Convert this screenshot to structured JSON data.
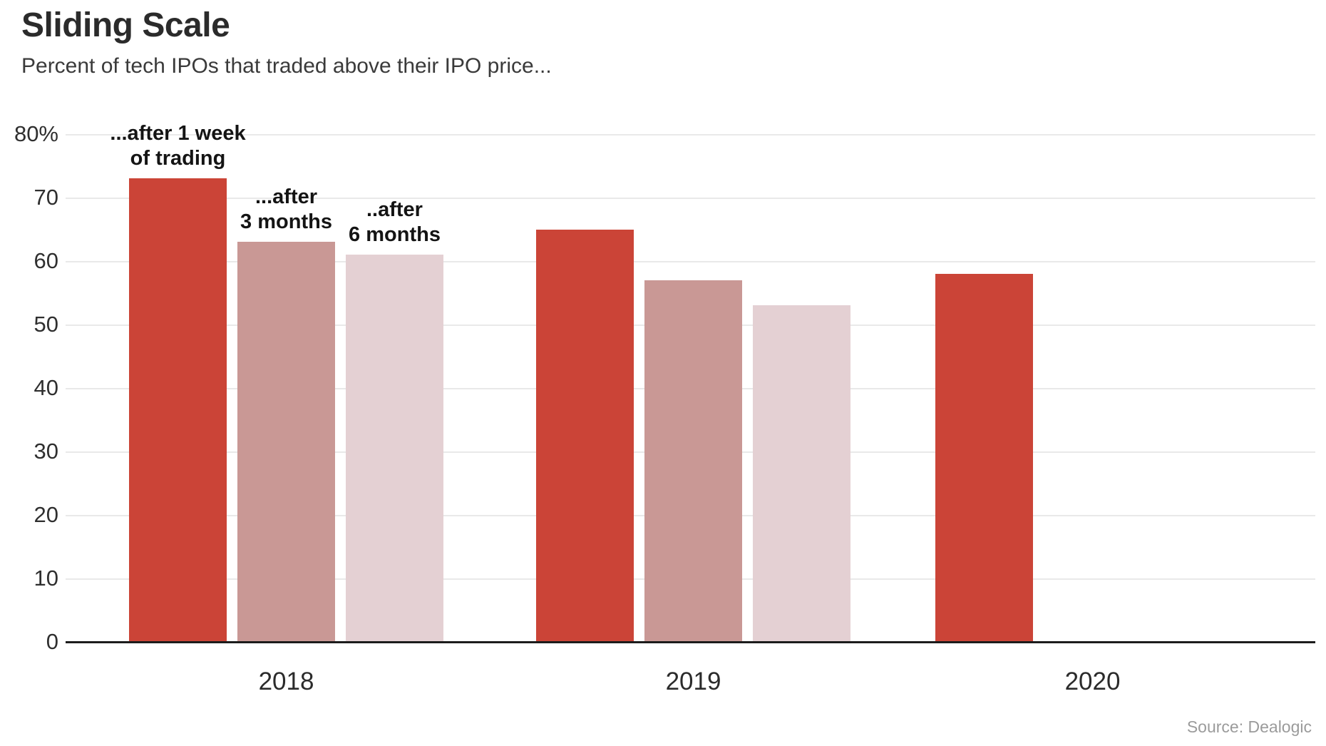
{
  "header": {
    "title": "Sliding Scale",
    "subtitle": "Percent of tech IPOs that traded above their IPO price..."
  },
  "source": "Source: Dealogic",
  "chart_data": {
    "type": "bar",
    "title": "Sliding Scale",
    "subtitle": "Percent of tech IPOs that traded above their IPO price...",
    "categories": [
      "2018",
      "2019",
      "2020"
    ],
    "series": [
      {
        "name": "...after 1 week of trading",
        "slug": "after-1-week",
        "color": "#cb4437",
        "values": [
          73,
          65,
          58
        ]
      },
      {
        "name": "...after 3 months",
        "slug": "after-3-months",
        "color": "#c99895",
        "values": [
          63,
          57,
          null
        ]
      },
      {
        "name": "..after 6 months",
        "slug": "after-6-months",
        "color": "#e4d0d3",
        "values": [
          61,
          53,
          null
        ]
      }
    ],
    "annotations": [
      {
        "lines": [
          "...after 1 week",
          "of trading"
        ],
        "group": 0,
        "slot": 0
      },
      {
        "lines": [
          "...after",
          "3 months"
        ],
        "group": 0,
        "slot": 1
      },
      {
        "lines": [
          "..after",
          "6 months"
        ],
        "group": 0,
        "slot": 2
      }
    ],
    "xlabel": "",
    "ylabel": "",
    "ylim": [
      0,
      80
    ],
    "yticks": [
      0,
      10,
      20,
      30,
      40,
      50,
      60,
      70,
      80
    ],
    "ytick_labels": [
      "0",
      "10",
      "20",
      "30",
      "40",
      "50",
      "60",
      "70",
      "80%"
    ],
    "grid": true,
    "legend_position": "none (series labeled by annotations above first group)"
  },
  "colors": {
    "bar_dark_red": "#cb4437",
    "bar_medium_rose": "#c99895",
    "bar_light_pink": "#e4d0d3",
    "gridline": "#e9e9e9",
    "axis_line": "#1c1c1c",
    "title_text": "#2b2b2b",
    "source_text": "#9b9b9b"
  }
}
